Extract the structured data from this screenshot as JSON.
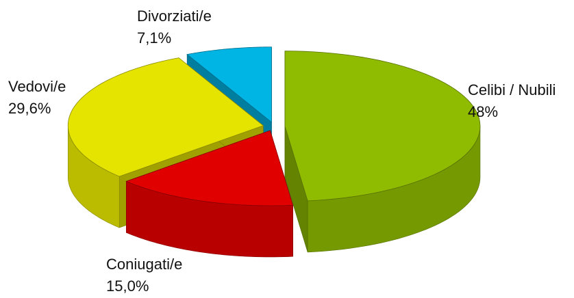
{
  "chart_data": {
    "type": "pie",
    "categories": [
      "Celibi / Nubili",
      "Coniugati/e",
      "Vedovi/e",
      "Divorziati/e"
    ],
    "values": [
      48,
      15.0,
      29.6,
      7.1
    ],
    "value_labels": [
      "48%",
      "15,0%",
      "29,6%",
      "7,1%"
    ],
    "colors": [
      "#8fbb00",
      "#e00000",
      "#e4e400",
      "#00b4e4"
    ]
  }
}
